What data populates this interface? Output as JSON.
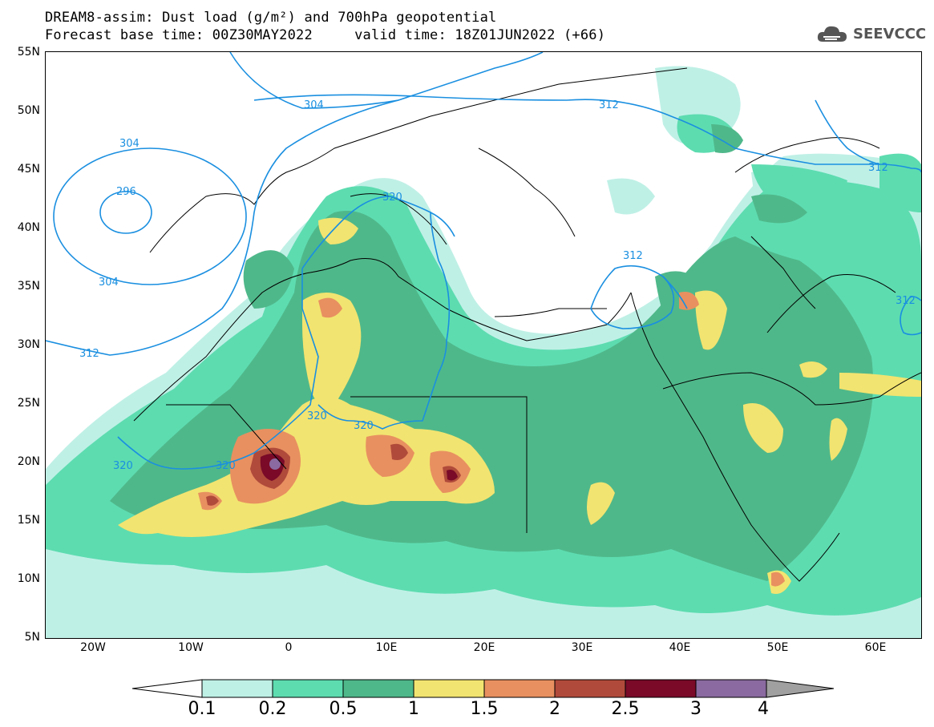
{
  "title": {
    "line1": "DREAM8-assim: Dust load (g/m²) and 700hPa geopotential",
    "line2": "Forecast base time: 00Z30MAY2022     valid time: 18Z01JUN2022 (+66)"
  },
  "logo": {
    "icon": "cloud-icon",
    "text": "SEEVCCC"
  },
  "axes": {
    "lat_labels": [
      "55N",
      "50N",
      "45N",
      "40N",
      "35N",
      "30N",
      "25N",
      "20N",
      "15N",
      "10N",
      "5N"
    ],
    "lon_labels": [
      "20W",
      "10W",
      "0",
      "10E",
      "20E",
      "30E",
      "40E",
      "50E",
      "60E"
    ],
    "lat_range": [
      5,
      55
    ],
    "lon_range": [
      -25,
      65
    ]
  },
  "contours": {
    "color": "#1a8fe0",
    "labels": [
      "304",
      "296",
      "304",
      "312",
      "304",
      "312",
      "320",
      "320",
      "320",
      "320",
      "320",
      "312",
      "312",
      "312"
    ]
  },
  "colorbar": {
    "ticks": [
      "0.1",
      "0.2",
      "0.5",
      "1",
      "1.5",
      "2",
      "2.5",
      "3",
      "4"
    ],
    "colors": [
      "#bff0e6",
      "#5ddcb0",
      "#4fb88a",
      "#f2e470",
      "#e89060",
      "#b04a3a",
      "#7a0a28",
      "#8a6aa0",
      "#a0a0a0"
    ]
  },
  "dust_colors": {
    "level1": "#bff0e6",
    "level2": "#5ddcb0",
    "level3": "#4fb88a",
    "level4": "#f2e470",
    "level5": "#e89060",
    "level6": "#b04a3a",
    "level7": "#7a0a28",
    "level8": "#8a6aa0"
  }
}
